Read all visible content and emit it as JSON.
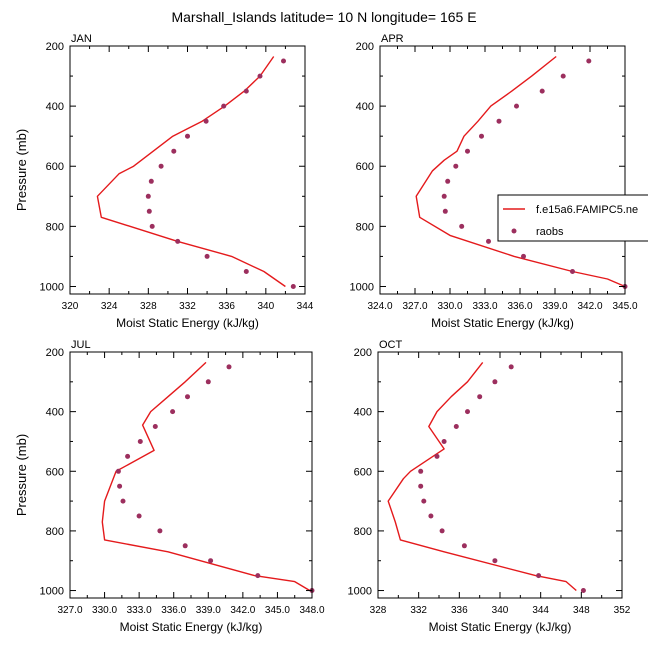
{
  "title": "Marshall_Islands  latitude= 10 N longitude= 165 E",
  "colors": {
    "model": "#e41a1c",
    "obs": "#9c2f5e",
    "axis": "#000000"
  },
  "chart_data": [
    {
      "type": "line",
      "panel_label": "JAN",
      "xlabel": "Moist Static Energy (kJ/kg)",
      "ylabel": "Pressure (mb)",
      "xlim": [
        320,
        344
      ],
      "ylim": [
        200,
        1025
      ],
      "y_inverted": true,
      "xticks": [
        320,
        324,
        328,
        332,
        336,
        340,
        344
      ],
      "xtick_labels": [
        "320",
        "324",
        "328",
        "332",
        "336",
        "340",
        "344"
      ],
      "yticks": [
        200,
        400,
        600,
        800,
        1000
      ],
      "ytick_labels": [
        "200",
        "400",
        "600",
        "800",
        "1000"
      ],
      "legend": null,
      "series": [
        {
          "style": "line",
          "points": [
            [
              340.8,
              235
            ],
            [
              339.4,
              300
            ],
            [
              337.8,
              350
            ],
            [
              335.8,
              400
            ],
            [
              333.5,
              450
            ],
            [
              330.5,
              500
            ],
            [
              328.5,
              550
            ],
            [
              326.5,
              600
            ],
            [
              325.0,
              625
            ],
            [
              322.8,
              700
            ],
            [
              323.2,
              770
            ],
            [
              331.0,
              850
            ],
            [
              336.5,
              900
            ],
            [
              339.8,
              950
            ],
            [
              342.0,
              1000
            ]
          ]
        },
        {
          "style": "markers",
          "points": [
            [
              341.8,
              250
            ],
            [
              339.4,
              300
            ],
            [
              338.0,
              350
            ],
            [
              335.7,
              400
            ],
            [
              333.9,
              450
            ],
            [
              332.0,
              500
            ],
            [
              330.6,
              550
            ],
            [
              329.3,
              600
            ],
            [
              328.3,
              650
            ],
            [
              328.0,
              700
            ],
            [
              328.1,
              750
            ],
            [
              328.4,
              800
            ],
            [
              331.0,
              850
            ],
            [
              334.0,
              900
            ],
            [
              338.0,
              950
            ],
            [
              342.8,
              1000
            ]
          ]
        }
      ]
    },
    {
      "type": "line",
      "panel_label": "APR",
      "xlabel": "Moist Static Energy (kJ/kg)",
      "ylabel": "Pressure (mb)",
      "xlim": [
        324,
        345
      ],
      "ylim": [
        200,
        1025
      ],
      "y_inverted": true,
      "xticks": [
        324,
        327,
        330,
        333,
        336,
        339,
        342,
        345
      ],
      "xtick_labels": [
        "324.0",
        "327.0",
        "330.0",
        "333.0",
        "336.0",
        "339.0",
        "342.0",
        "345.0"
      ],
      "yticks": [
        200,
        400,
        600,
        800,
        1000
      ],
      "ytick_labels": [
        "200",
        "400",
        "600",
        "800",
        "1000"
      ],
      "legend": {
        "position": "right",
        "entries": [
          "f.e15a6.FAMIPC5.ne",
          "raobs"
        ]
      },
      "series": [
        {
          "name": "f.e15a6.FAMIPC5.ne",
          "style": "line",
          "points": [
            [
              339.1,
              235
            ],
            [
              337.0,
              300
            ],
            [
              335.3,
              350
            ],
            [
              333.5,
              400
            ],
            [
              332.4,
              450
            ],
            [
              331.2,
              500
            ],
            [
              330.6,
              550
            ],
            [
              329.5,
              580
            ],
            [
              328.5,
              615
            ],
            [
              327.1,
              700
            ],
            [
              327.4,
              770
            ],
            [
              330.0,
              830
            ],
            [
              335.5,
              900
            ],
            [
              340.5,
              950
            ],
            [
              343.5,
              975
            ],
            [
              345.0,
              1000
            ]
          ]
        },
        {
          "name": "raobs",
          "style": "markers",
          "points": [
            [
              341.9,
              250
            ],
            [
              339.7,
              300
            ],
            [
              337.9,
              350
            ],
            [
              335.7,
              400
            ],
            [
              334.2,
              450
            ],
            [
              332.7,
              500
            ],
            [
              331.5,
              550
            ],
            [
              330.5,
              600
            ],
            [
              329.8,
              650
            ],
            [
              329.5,
              700
            ],
            [
              329.6,
              750
            ],
            [
              331.0,
              800
            ],
            [
              333.3,
              850
            ],
            [
              336.3,
              900
            ],
            [
              340.5,
              950
            ],
            [
              345.0,
              1000
            ]
          ]
        }
      ]
    },
    {
      "type": "line",
      "panel_label": "JUL",
      "xlabel": "Moist Static Energy (kJ/kg)",
      "ylabel": "Pressure (mb)",
      "xlim": [
        327,
        348
      ],
      "ylim": [
        200,
        1025
      ],
      "y_inverted": true,
      "xticks": [
        327,
        330,
        333,
        336,
        339,
        342,
        345,
        348
      ],
      "xtick_labels": [
        "327.0",
        "330.0",
        "333.0",
        "336.0",
        "339.0",
        "342.0",
        "345.0",
        "348.0"
      ],
      "yticks": [
        200,
        400,
        600,
        800,
        1000
      ],
      "ytick_labels": [
        "200",
        "400",
        "600",
        "800",
        "1000"
      ],
      "legend": null,
      "series": [
        {
          "style": "line",
          "points": [
            [
              338.8,
              235
            ],
            [
              337.0,
              300
            ],
            [
              335.5,
              350
            ],
            [
              334.0,
              400
            ],
            [
              333.3,
              445
            ],
            [
              334.3,
              530
            ],
            [
              331.0,
              600
            ],
            [
              330.0,
              700
            ],
            [
              329.8,
              770
            ],
            [
              330.0,
              830
            ],
            [
              335.5,
              870
            ],
            [
              343.0,
              950
            ],
            [
              346.5,
              970
            ],
            [
              347.8,
              1000
            ]
          ]
        },
        {
          "style": "markers",
          "points": [
            [
              340.8,
              250
            ],
            [
              339.0,
              300
            ],
            [
              337.2,
              350
            ],
            [
              335.9,
              400
            ],
            [
              334.4,
              450
            ],
            [
              333.1,
              500
            ],
            [
              332.0,
              550
            ],
            [
              331.2,
              600
            ],
            [
              331.3,
              650
            ],
            [
              331.6,
              700
            ],
            [
              333.0,
              750
            ],
            [
              334.8,
              800
            ],
            [
              337.0,
              850
            ],
            [
              339.2,
              900
            ],
            [
              343.3,
              950
            ],
            [
              348.0,
              1000
            ]
          ]
        }
      ]
    },
    {
      "type": "line",
      "panel_label": "OCT",
      "xlabel": "Moist Static Energy (kJ/kg)",
      "ylabel": "Pressure (mb)",
      "xlim": [
        328,
        352
      ],
      "ylim": [
        200,
        1025
      ],
      "y_inverted": true,
      "xticks": [
        328,
        332,
        336,
        340,
        344,
        348,
        352
      ],
      "xtick_labels": [
        "328",
        "332",
        "336",
        "340",
        "344",
        "348",
        "352"
      ],
      "yticks": [
        200,
        400,
        600,
        800,
        1000
      ],
      "ytick_labels": [
        "200",
        "400",
        "600",
        "800",
        "1000"
      ],
      "legend": null,
      "series": [
        {
          "style": "line",
          "points": [
            [
              338.3,
              235
            ],
            [
              336.8,
              300
            ],
            [
              335.2,
              350
            ],
            [
              333.8,
              400
            ],
            [
              333.0,
              450
            ],
            [
              334.5,
              525
            ],
            [
              331.2,
              600
            ],
            [
              330.5,
              625
            ],
            [
              329.0,
              700
            ],
            [
              329.7,
              770
            ],
            [
              330.2,
              830
            ],
            [
              334.5,
              870
            ],
            [
              343.5,
              950
            ],
            [
              346.5,
              970
            ],
            [
              347.5,
              1000
            ]
          ]
        },
        {
          "style": "markers",
          "points": [
            [
              341.1,
              250
            ],
            [
              339.5,
              300
            ],
            [
              338.0,
              350
            ],
            [
              336.8,
              400
            ],
            [
              335.7,
              450
            ],
            [
              334.5,
              500
            ],
            [
              333.8,
              550
            ],
            [
              332.2,
              600
            ],
            [
              332.2,
              650
            ],
            [
              332.5,
              700
            ],
            [
              333.2,
              750
            ],
            [
              334.3,
              800
            ],
            [
              336.5,
              850
            ],
            [
              339.5,
              900
            ],
            [
              343.8,
              950
            ],
            [
              348.2,
              1000
            ]
          ]
        }
      ]
    }
  ]
}
